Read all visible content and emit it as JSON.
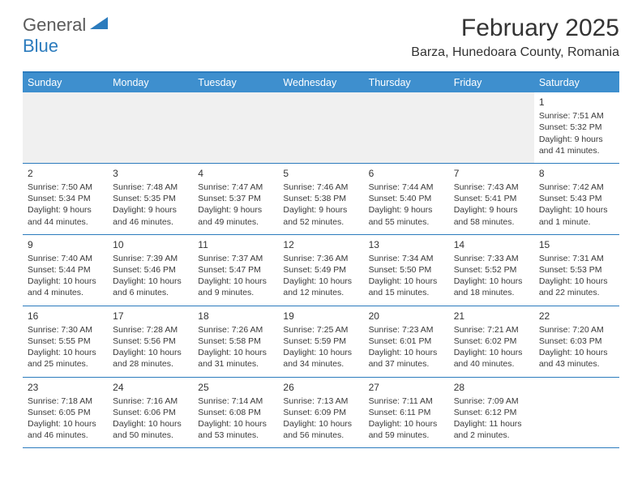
{
  "logo": {
    "part1": "General",
    "part2": "Blue"
  },
  "title": "February 2025",
  "location": "Barza, Hunedoara County, Romania",
  "colors": {
    "brand_blue": "#2b7bbd",
    "header_blue": "#3e8fce",
    "light_gray": "#f0f0f0",
    "text": "#333333"
  },
  "day_headers": [
    "Sunday",
    "Monday",
    "Tuesday",
    "Wednesday",
    "Thursday",
    "Friday",
    "Saturday"
  ],
  "weeks": [
    [
      null,
      null,
      null,
      null,
      null,
      null,
      {
        "n": "1",
        "sr": "7:51 AM",
        "ss": "5:32 PM",
        "dl": "9 hours and 41 minutes."
      }
    ],
    [
      {
        "n": "2",
        "sr": "7:50 AM",
        "ss": "5:34 PM",
        "dl": "9 hours and 44 minutes."
      },
      {
        "n": "3",
        "sr": "7:48 AM",
        "ss": "5:35 PM",
        "dl": "9 hours and 46 minutes."
      },
      {
        "n": "4",
        "sr": "7:47 AM",
        "ss": "5:37 PM",
        "dl": "9 hours and 49 minutes."
      },
      {
        "n": "5",
        "sr": "7:46 AM",
        "ss": "5:38 PM",
        "dl": "9 hours and 52 minutes."
      },
      {
        "n": "6",
        "sr": "7:44 AM",
        "ss": "5:40 PM",
        "dl": "9 hours and 55 minutes."
      },
      {
        "n": "7",
        "sr": "7:43 AM",
        "ss": "5:41 PM",
        "dl": "9 hours and 58 minutes."
      },
      {
        "n": "8",
        "sr": "7:42 AM",
        "ss": "5:43 PM",
        "dl": "10 hours and 1 minute."
      }
    ],
    [
      {
        "n": "9",
        "sr": "7:40 AM",
        "ss": "5:44 PM",
        "dl": "10 hours and 4 minutes."
      },
      {
        "n": "10",
        "sr": "7:39 AM",
        "ss": "5:46 PM",
        "dl": "10 hours and 6 minutes."
      },
      {
        "n": "11",
        "sr": "7:37 AM",
        "ss": "5:47 PM",
        "dl": "10 hours and 9 minutes."
      },
      {
        "n": "12",
        "sr": "7:36 AM",
        "ss": "5:49 PM",
        "dl": "10 hours and 12 minutes."
      },
      {
        "n": "13",
        "sr": "7:34 AM",
        "ss": "5:50 PM",
        "dl": "10 hours and 15 minutes."
      },
      {
        "n": "14",
        "sr": "7:33 AM",
        "ss": "5:52 PM",
        "dl": "10 hours and 18 minutes."
      },
      {
        "n": "15",
        "sr": "7:31 AM",
        "ss": "5:53 PM",
        "dl": "10 hours and 22 minutes."
      }
    ],
    [
      {
        "n": "16",
        "sr": "7:30 AM",
        "ss": "5:55 PM",
        "dl": "10 hours and 25 minutes."
      },
      {
        "n": "17",
        "sr": "7:28 AM",
        "ss": "5:56 PM",
        "dl": "10 hours and 28 minutes."
      },
      {
        "n": "18",
        "sr": "7:26 AM",
        "ss": "5:58 PM",
        "dl": "10 hours and 31 minutes."
      },
      {
        "n": "19",
        "sr": "7:25 AM",
        "ss": "5:59 PM",
        "dl": "10 hours and 34 minutes."
      },
      {
        "n": "20",
        "sr": "7:23 AM",
        "ss": "6:01 PM",
        "dl": "10 hours and 37 minutes."
      },
      {
        "n": "21",
        "sr": "7:21 AM",
        "ss": "6:02 PM",
        "dl": "10 hours and 40 minutes."
      },
      {
        "n": "22",
        "sr": "7:20 AM",
        "ss": "6:03 PM",
        "dl": "10 hours and 43 minutes."
      }
    ],
    [
      {
        "n": "23",
        "sr": "7:18 AM",
        "ss": "6:05 PM",
        "dl": "10 hours and 46 minutes."
      },
      {
        "n": "24",
        "sr": "7:16 AM",
        "ss": "6:06 PM",
        "dl": "10 hours and 50 minutes."
      },
      {
        "n": "25",
        "sr": "7:14 AM",
        "ss": "6:08 PM",
        "dl": "10 hours and 53 minutes."
      },
      {
        "n": "26",
        "sr": "7:13 AM",
        "ss": "6:09 PM",
        "dl": "10 hours and 56 minutes."
      },
      {
        "n": "27",
        "sr": "7:11 AM",
        "ss": "6:11 PM",
        "dl": "10 hours and 59 minutes."
      },
      {
        "n": "28",
        "sr": "7:09 AM",
        "ss": "6:12 PM",
        "dl": "11 hours and 2 minutes."
      },
      null
    ]
  ],
  "labels": {
    "sunrise": "Sunrise:",
    "sunset": "Sunset:",
    "daylight": "Daylight:"
  }
}
